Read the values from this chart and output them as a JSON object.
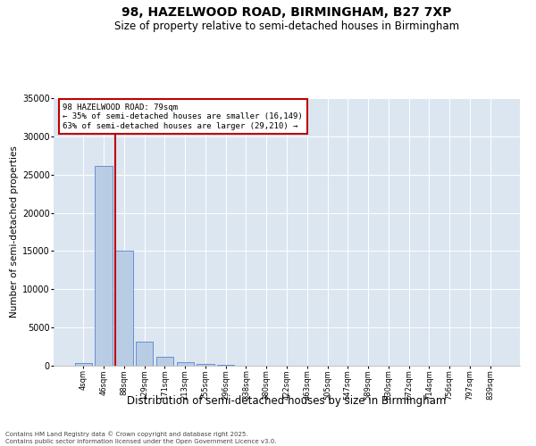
{
  "title1": "98, HAZELWOOD ROAD, BIRMINGHAM, B27 7XP",
  "title2": "Size of property relative to semi-detached houses in Birmingham",
  "xlabel": "Distribution of semi-detached houses by size in Birmingham",
  "ylabel": "Number of semi-detached properties",
  "footnote": "Contains HM Land Registry data © Crown copyright and database right 2025.\nContains public sector information licensed under the Open Government Licence v3.0.",
  "categories": [
    "4sqm",
    "46sqm",
    "88sqm",
    "129sqm",
    "171sqm",
    "213sqm",
    "255sqm",
    "296sqm",
    "338sqm",
    "380sqm",
    "422sqm",
    "463sqm",
    "505sqm",
    "547sqm",
    "589sqm",
    "630sqm",
    "672sqm",
    "714sqm",
    "756sqm",
    "797sqm",
    "839sqm"
  ],
  "values": [
    300,
    26100,
    15100,
    3150,
    1200,
    450,
    200,
    100,
    0,
    0,
    0,
    0,
    0,
    0,
    0,
    0,
    0,
    0,
    0,
    0,
    0
  ],
  "bar_color": "#b8cce4",
  "bar_edge_color": "#4472c4",
  "vline_bar_index": 2,
  "vline_color": "#c00000",
  "annotation_title": "98 HAZELWOOD ROAD: 79sqm",
  "annotation_line1": "← 35% of semi-detached houses are smaller (16,149)",
  "annotation_line2": "63% of semi-detached houses are larger (29,210) →",
  "annotation_box_color": "#c00000",
  "ylim": [
    0,
    35000
  ],
  "yticks": [
    0,
    5000,
    10000,
    15000,
    20000,
    25000,
    30000,
    35000
  ],
  "plot_bg_color": "#dce6f1",
  "title1_fontsize": 10,
  "title2_fontsize": 8.5,
  "xlabel_fontsize": 8.5,
  "ylabel_fontsize": 7.5
}
